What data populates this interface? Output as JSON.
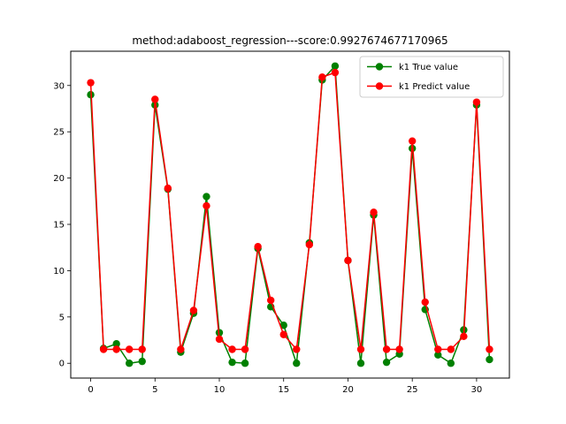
{
  "chart_data": {
    "type": "line",
    "title": "method:adaboost_regression---score:0.9927674677170965",
    "xlabel": "",
    "ylabel": "",
    "xlim": [
      -1.55,
      32.55
    ],
    "ylim": [
      -1.6,
      33.7
    ],
    "xticks": [
      0,
      5,
      10,
      15,
      20,
      25,
      30
    ],
    "yticks": [
      0,
      5,
      10,
      15,
      20,
      25,
      30
    ],
    "grid": false,
    "legend_position": "top-right",
    "x": [
      0,
      1,
      2,
      3,
      4,
      5,
      6,
      7,
      8,
      9,
      10,
      11,
      12,
      13,
      14,
      15,
      16,
      17,
      18,
      19,
      20,
      21,
      22,
      23,
      24,
      25,
      26,
      27,
      28,
      29,
      30,
      31
    ],
    "series": [
      {
        "name": "k1 True value",
        "color": "#008000",
        "values": [
          29.0,
          1.6,
          2.1,
          0.0,
          0.2,
          27.9,
          18.8,
          1.2,
          5.4,
          18.0,
          3.3,
          0.1,
          0.0,
          12.4,
          6.1,
          4.1,
          0.0,
          13.0,
          30.6,
          32.1,
          11.1,
          0.0,
          16.0,
          0.1,
          1.0,
          23.2,
          5.8,
          0.9,
          0.0,
          3.6,
          27.9,
          0.4
        ]
      },
      {
        "name": "k1 Predict value",
        "color": "#ff0000",
        "values": [
          30.3,
          1.5,
          1.5,
          1.5,
          1.5,
          28.5,
          18.9,
          1.5,
          5.7,
          17.0,
          2.6,
          1.5,
          1.5,
          12.6,
          6.8,
          3.1,
          1.5,
          12.8,
          30.9,
          31.4,
          11.1,
          1.5,
          16.3,
          1.5,
          1.5,
          24.0,
          6.6,
          1.5,
          1.5,
          2.9,
          28.2,
          1.5
        ]
      }
    ]
  }
}
